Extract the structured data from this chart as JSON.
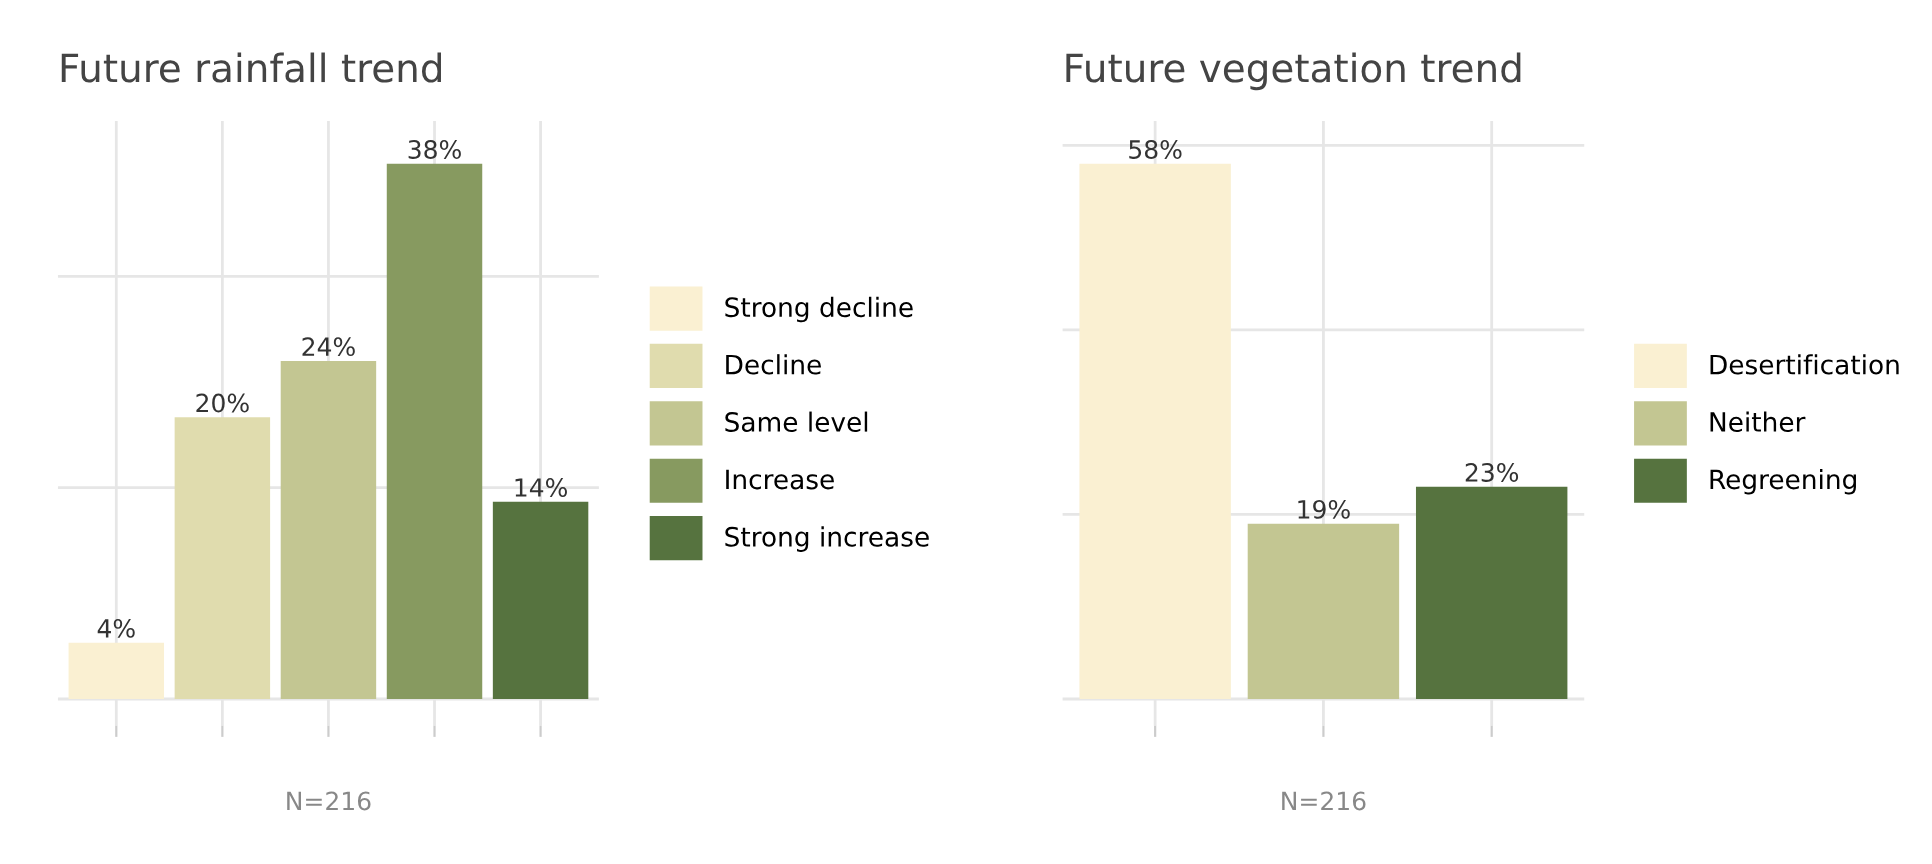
{
  "chart_data": [
    {
      "type": "bar",
      "title": "Future rainfall trend",
      "xlabel": "N=216",
      "categories": [
        null,
        null,
        null,
        null,
        null
      ],
      "stacked": true,
      "series": [
        {
          "name": "Strong decline",
          "color": "#faf0d2",
          "values": [
            4,
            0,
            0,
            0,
            0
          ],
          "value_labels": [
            "4%",
            null,
            null,
            null,
            null
          ]
        },
        {
          "name": "Decline",
          "color": "#e0dcae",
          "values": [
            0,
            20,
            0,
            0,
            0
          ],
          "value_labels": [
            null,
            "20%",
            null,
            null,
            null
          ]
        },
        {
          "name": "Same level",
          "color": "#c3c692",
          "values": [
            0,
            0,
            24,
            0,
            0
          ],
          "value_labels": [
            null,
            null,
            "24%",
            null,
            null
          ]
        },
        {
          "name": "Increase",
          "color": "#879a60",
          "values": [
            0,
            0,
            0,
            38,
            0
          ],
          "value_labels": [
            null,
            null,
            null,
            "38%",
            null
          ]
        },
        {
          "name": "Strong increase",
          "color": "#56733f",
          "values": [
            0,
            0,
            0,
            0,
            14
          ],
          "value_labels": [
            null,
            null,
            null,
            null,
            "14%"
          ]
        }
      ],
      "grid": true,
      "legend": "right"
    },
    {
      "type": "bar",
      "title": "Future vegetation trend",
      "xlabel": "N=216",
      "categories": [
        null,
        null,
        null
      ],
      "stacked": true,
      "series": [
        {
          "name": "Desertification",
          "color": "#faf0d2",
          "values": [
            58,
            0,
            0
          ],
          "value_labels": [
            "58%",
            null,
            null
          ]
        },
        {
          "name": "Neither",
          "color": "#c3c692",
          "values": [
            0,
            19,
            0
          ],
          "value_labels": [
            null,
            "19%",
            null
          ]
        },
        {
          "name": "Regreening",
          "color": "#56733f",
          "values": [
            0,
            0,
            23
          ],
          "value_labels": [
            null,
            null,
            "23%"
          ]
        }
      ],
      "grid": true,
      "legend": "right"
    }
  ]
}
